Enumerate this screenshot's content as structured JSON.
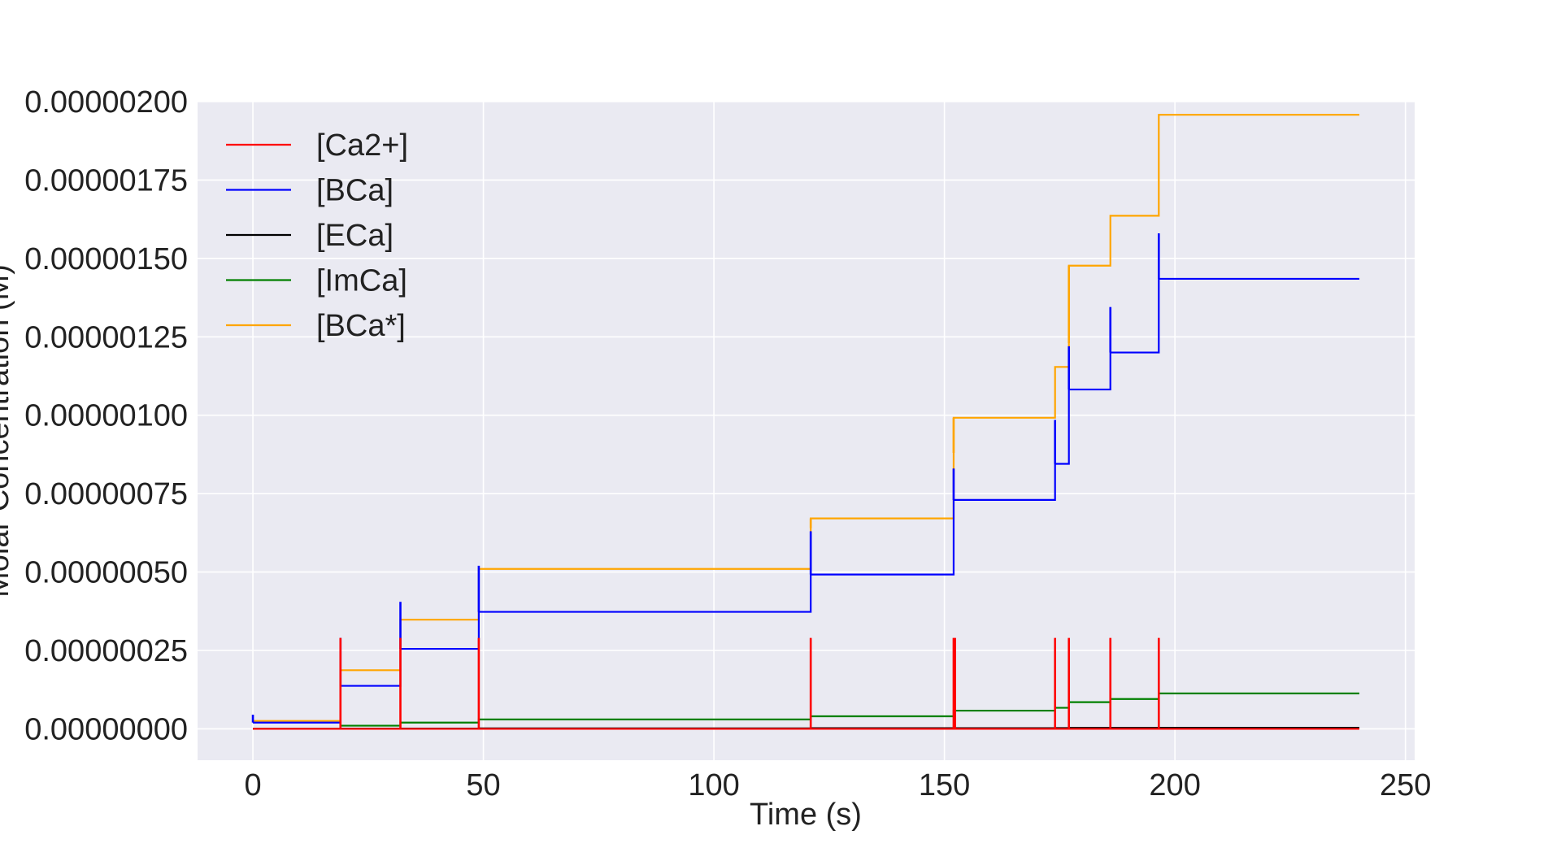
{
  "chart_data": {
    "type": "line",
    "step": true,
    "xlabel": "Time (s)",
    "ylabel": "Molar Concentration (M)",
    "xlim": [
      -12,
      252
    ],
    "ylim": [
      -1e-07,
      2e-06
    ],
    "xticks": [
      0,
      50,
      100,
      150,
      200,
      250
    ],
    "xtick_labels": [
      "0",
      "50",
      "100",
      "150",
      "200",
      "250"
    ],
    "yticks": [
      0,
      2.5e-07,
      5e-07,
      7.5e-07,
      1e-06,
      1.25e-06,
      1.5e-06,
      1.75e-06,
      2e-06
    ],
    "ytick_labels": [
      "0.00000000",
      "0.00000025",
      "0.00000050",
      "0.00000075",
      "0.00000100",
      "0.00000125",
      "0.00000150",
      "0.00000175",
      "0.00000200"
    ],
    "grid": true,
    "legend_position": "top-left",
    "spike_times": [
      0,
      19,
      32,
      49,
      121,
      152,
      152.3,
      174,
      177,
      186,
      196.5
    ],
    "series": [
      {
        "name": "[Ca2+]",
        "color": "#ff0000",
        "x": [
          0,
          240
        ],
        "y": [
          0,
          0
        ],
        "spikes": [
          {
            "x": 19,
            "peak": 2.9e-07
          },
          {
            "x": 32,
            "peak": 2.9e-07
          },
          {
            "x": 49,
            "peak": 2.9e-07
          },
          {
            "x": 121,
            "peak": 2.9e-07
          },
          {
            "x": 152,
            "peak": 2.9e-07
          },
          {
            "x": 152.3,
            "peak": 2.9e-07
          },
          {
            "x": 174,
            "peak": 2.9e-07
          },
          {
            "x": 177,
            "peak": 2.9e-07
          },
          {
            "x": 186,
            "peak": 2.9e-07
          },
          {
            "x": 196.5,
            "peak": 2.9e-07
          }
        ]
      },
      {
        "name": "[BCa]",
        "color": "#0000ff",
        "x": [
          0,
          19,
          32,
          49,
          121,
          152,
          174,
          177,
          186,
          196.5,
          240
        ],
        "y": [
          2e-08,
          1.37e-07,
          2.55e-07,
          3.73e-07,
          4.92e-07,
          7.3e-07,
          8.45e-07,
          1.082e-06,
          1.2e-06,
          1.435e-06,
          1.435e-06
        ],
        "spikes": [
          {
            "x": 0,
            "peak": 4.5e-08
          },
          {
            "x": 19,
            "peak": 2.9e-07
          },
          {
            "x": 32,
            "peak": 4.05e-07
          },
          {
            "x": 49,
            "peak": 5.2e-07
          },
          {
            "x": 121,
            "peak": 6.3e-07
          },
          {
            "x": 152,
            "peak": 8.3e-07
          },
          {
            "x": 174,
            "peak": 9.85e-07
          },
          {
            "x": 177,
            "peak": 1.22e-06
          },
          {
            "x": 186,
            "peak": 1.345e-06
          },
          {
            "x": 196.5,
            "peak": 1.58e-06
          }
        ]
      },
      {
        "name": "[ECa]",
        "color": "#000000",
        "x": [
          0,
          19,
          32,
          49,
          121,
          152,
          174,
          177,
          186,
          196.5,
          240
        ],
        "y": [
          0,
          5e-10,
          1e-09,
          1.5e-09,
          2e-09,
          2e-09,
          2.5e-09,
          3e-09,
          3e-09,
          3.5e-09,
          3.5e-09
        ],
        "spikes": []
      },
      {
        "name": "[ImCa]",
        "color": "#008000",
        "x": [
          0,
          19,
          32,
          49,
          121,
          152,
          174,
          177,
          186,
          196.5,
          240
        ],
        "y": [
          0,
          1e-08,
          2e-08,
          3e-08,
          4e-08,
          5.8e-08,
          6.7e-08,
          8.5e-08,
          9.5e-08,
          1.13e-07,
          1.13e-07
        ],
        "spikes": []
      },
      {
        "name": "[BCa*]",
        "color": "#ffa500",
        "x": [
          0,
          19,
          32,
          49,
          121,
          152,
          174,
          177,
          186,
          196.5,
          240
        ],
        "y": [
          2.5e-08,
          1.87e-07,
          3.48e-07,
          5.1e-07,
          6.71e-07,
          9.92e-07,
          1.154e-06,
          1.477e-06,
          1.636e-06,
          1.958e-06,
          1.958e-06
        ],
        "spikes": [
          {
            "x": 121,
            "peak": 6.4e-07
          },
          {
            "x": 152,
            "peak": 8.8e-07
          },
          {
            "x": 177,
            "peak": 1.23e-06
          }
        ]
      }
    ]
  }
}
